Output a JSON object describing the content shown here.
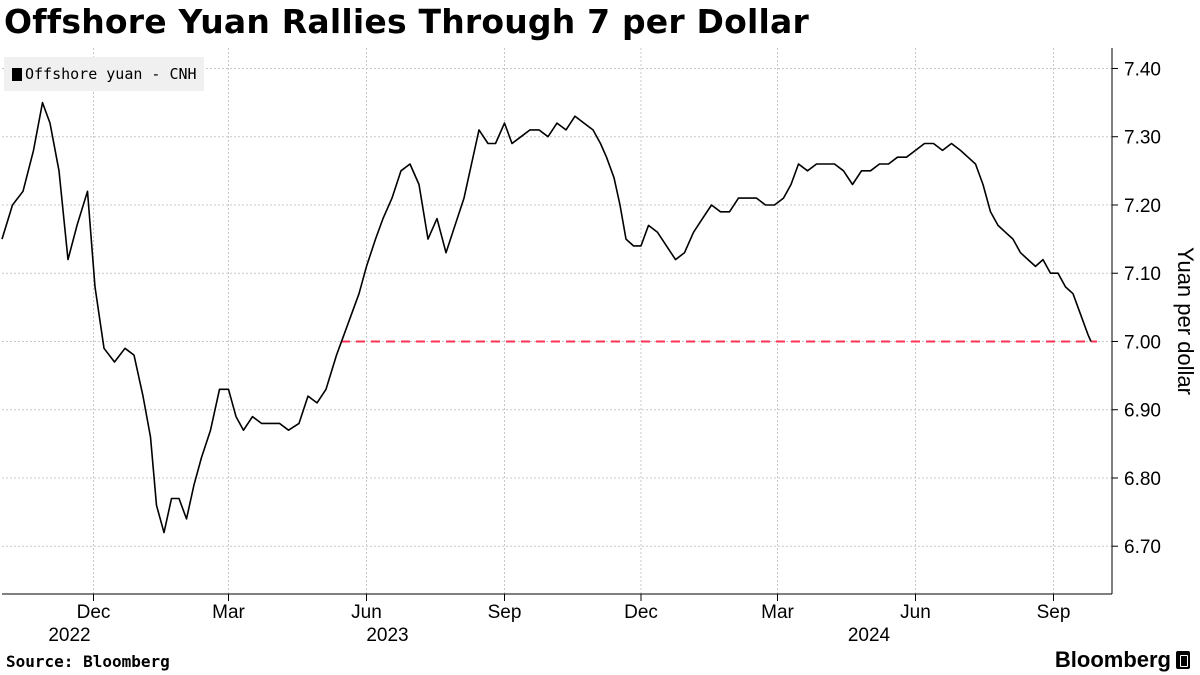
{
  "title": "Offshore Yuan Rallies Through 7 per Dollar",
  "source": "Source: Bloomberg",
  "brand": "Bloomberg",
  "chart_data": {
    "type": "line",
    "title": "Offshore Yuan Rallies Through 7 per Dollar",
    "ylabel": "Yuan per dollar",
    "xlabel": "",
    "legend": {
      "placement": "top-left",
      "entries": [
        "Offshore yuan - CNH"
      ]
    },
    "y_axis_side": "right",
    "ylim": [
      6.63,
      7.43
    ],
    "yticks": [
      6.7,
      6.8,
      6.9,
      7.0,
      7.1,
      7.2,
      7.3,
      7.4
    ],
    "ytick_labels": [
      "6.70",
      "6.80",
      "6.90",
      "7.00",
      "7.10",
      "7.20",
      "7.30",
      "7.40"
    ],
    "grid": true,
    "x_range": [
      "2022-10-01",
      "2024-09-30"
    ],
    "month_ticks": [
      {
        "date": "2022-12-01",
        "label": "Dec"
      },
      {
        "date": "2023-03-01",
        "label": "Mar"
      },
      {
        "date": "2023-06-01",
        "label": "Jun"
      },
      {
        "date": "2023-09-01",
        "label": "Sep"
      },
      {
        "date": "2023-12-01",
        "label": "Dec"
      },
      {
        "date": "2024-03-01",
        "label": "Mar"
      },
      {
        "date": "2024-06-01",
        "label": "Jun"
      },
      {
        "date": "2024-09-01",
        "label": "Sep"
      }
    ],
    "year_labels": [
      {
        "date": "2022-11-15",
        "label": "2022"
      },
      {
        "date": "2023-06-15",
        "label": "2023"
      },
      {
        "date": "2024-05-01",
        "label": "2024"
      }
    ],
    "reference_line": {
      "value": 7.0,
      "from": "2023-05-15",
      "color": "#ff3355",
      "style": "dashed"
    },
    "series": [
      {
        "name": "Offshore yuan - CNH",
        "color": "#000000",
        "points": [
          [
            "2022-10-01",
            7.15
          ],
          [
            "2022-10-08",
            7.2
          ],
          [
            "2022-10-15",
            7.22
          ],
          [
            "2022-10-22",
            7.28
          ],
          [
            "2022-10-28",
            7.35
          ],
          [
            "2022-11-02",
            7.32
          ],
          [
            "2022-11-08",
            7.25
          ],
          [
            "2022-11-14",
            7.12
          ],
          [
            "2022-11-20",
            7.17
          ],
          [
            "2022-11-27",
            7.22
          ],
          [
            "2022-12-02",
            7.08
          ],
          [
            "2022-12-08",
            6.99
          ],
          [
            "2022-12-15",
            6.97
          ],
          [
            "2022-12-22",
            6.99
          ],
          [
            "2022-12-28",
            6.98
          ],
          [
            "2023-01-03",
            6.92
          ],
          [
            "2023-01-08",
            6.86
          ],
          [
            "2023-01-12",
            6.76
          ],
          [
            "2023-01-17",
            6.72
          ],
          [
            "2023-01-22",
            6.77
          ],
          [
            "2023-01-27",
            6.77
          ],
          [
            "2023-02-01",
            6.74
          ],
          [
            "2023-02-06",
            6.79
          ],
          [
            "2023-02-11",
            6.83
          ],
          [
            "2023-02-17",
            6.87
          ],
          [
            "2023-02-23",
            6.93
          ],
          [
            "2023-03-01",
            6.93
          ],
          [
            "2023-03-06",
            6.89
          ],
          [
            "2023-03-11",
            6.87
          ],
          [
            "2023-03-17",
            6.89
          ],
          [
            "2023-03-23",
            6.88
          ],
          [
            "2023-03-29",
            6.88
          ],
          [
            "2023-04-04",
            6.88
          ],
          [
            "2023-04-10",
            6.87
          ],
          [
            "2023-04-17",
            6.88
          ],
          [
            "2023-04-23",
            6.92
          ],
          [
            "2023-04-29",
            6.91
          ],
          [
            "2023-05-05",
            6.93
          ],
          [
            "2023-05-12",
            6.98
          ],
          [
            "2023-05-17",
            7.01
          ],
          [
            "2023-05-22",
            7.04
          ],
          [
            "2023-05-27",
            7.07
          ],
          [
            "2023-06-01",
            7.11
          ],
          [
            "2023-06-07",
            7.15
          ],
          [
            "2023-06-12",
            7.18
          ],
          [
            "2023-06-18",
            7.21
          ],
          [
            "2023-06-24",
            7.25
          ],
          [
            "2023-06-30",
            7.26
          ],
          [
            "2023-07-06",
            7.23
          ],
          [
            "2023-07-12",
            7.15
          ],
          [
            "2023-07-18",
            7.18
          ],
          [
            "2023-07-24",
            7.13
          ],
          [
            "2023-07-30",
            7.17
          ],
          [
            "2023-08-05",
            7.21
          ],
          [
            "2023-08-10",
            7.26
          ],
          [
            "2023-08-15",
            7.31
          ],
          [
            "2023-08-21",
            7.29
          ],
          [
            "2023-08-26",
            7.29
          ],
          [
            "2023-09-01",
            7.32
          ],
          [
            "2023-09-06",
            7.29
          ],
          [
            "2023-09-12",
            7.3
          ],
          [
            "2023-09-18",
            7.31
          ],
          [
            "2023-09-24",
            7.31
          ],
          [
            "2023-09-30",
            7.3
          ],
          [
            "2023-10-06",
            7.32
          ],
          [
            "2023-10-12",
            7.31
          ],
          [
            "2023-10-18",
            7.33
          ],
          [
            "2023-10-24",
            7.32
          ],
          [
            "2023-10-30",
            7.31
          ],
          [
            "2023-11-04",
            7.29
          ],
          [
            "2023-11-08",
            7.27
          ],
          [
            "2023-11-13",
            7.24
          ],
          [
            "2023-11-17",
            7.2
          ],
          [
            "2023-11-21",
            7.15
          ],
          [
            "2023-11-26",
            7.14
          ],
          [
            "2023-12-01",
            7.14
          ],
          [
            "2023-12-06",
            7.17
          ],
          [
            "2023-12-12",
            7.16
          ],
          [
            "2023-12-18",
            7.14
          ],
          [
            "2023-12-24",
            7.12
          ],
          [
            "2023-12-30",
            7.13
          ],
          [
            "2024-01-05",
            7.16
          ],
          [
            "2024-01-11",
            7.18
          ],
          [
            "2024-01-17",
            7.2
          ],
          [
            "2024-01-23",
            7.19
          ],
          [
            "2024-01-29",
            7.19
          ],
          [
            "2024-02-04",
            7.21
          ],
          [
            "2024-02-10",
            7.21
          ],
          [
            "2024-02-16",
            7.21
          ],
          [
            "2024-02-22",
            7.2
          ],
          [
            "2024-02-28",
            7.2
          ],
          [
            "2024-03-05",
            7.21
          ],
          [
            "2024-03-10",
            7.23
          ],
          [
            "2024-03-15",
            7.26
          ],
          [
            "2024-03-21",
            7.25
          ],
          [
            "2024-03-27",
            7.26
          ],
          [
            "2024-04-02",
            7.26
          ],
          [
            "2024-04-08",
            7.26
          ],
          [
            "2024-04-14",
            7.25
          ],
          [
            "2024-04-20",
            7.23
          ],
          [
            "2024-04-26",
            7.25
          ],
          [
            "2024-05-02",
            7.25
          ],
          [
            "2024-05-08",
            7.26
          ],
          [
            "2024-05-14",
            7.26
          ],
          [
            "2024-05-20",
            7.27
          ],
          [
            "2024-05-26",
            7.27
          ],
          [
            "2024-06-01",
            7.28
          ],
          [
            "2024-06-07",
            7.29
          ],
          [
            "2024-06-13",
            7.29
          ],
          [
            "2024-06-19",
            7.28
          ],
          [
            "2024-06-25",
            7.29
          ],
          [
            "2024-07-01",
            7.28
          ],
          [
            "2024-07-06",
            7.27
          ],
          [
            "2024-07-11",
            7.26
          ],
          [
            "2024-07-16",
            7.23
          ],
          [
            "2024-07-21",
            7.19
          ],
          [
            "2024-07-26",
            7.17
          ],
          [
            "2024-07-31",
            7.16
          ],
          [
            "2024-08-05",
            7.15
          ],
          [
            "2024-08-10",
            7.13
          ],
          [
            "2024-08-15",
            7.12
          ],
          [
            "2024-08-20",
            7.11
          ],
          [
            "2024-08-25",
            7.12
          ],
          [
            "2024-08-30",
            7.1
          ],
          [
            "2024-09-04",
            7.1
          ],
          [
            "2024-09-09",
            7.08
          ],
          [
            "2024-09-14",
            7.07
          ],
          [
            "2024-09-19",
            7.04
          ],
          [
            "2024-09-24",
            7.01
          ],
          [
            "2024-09-26",
            7.0
          ]
        ]
      }
    ]
  }
}
